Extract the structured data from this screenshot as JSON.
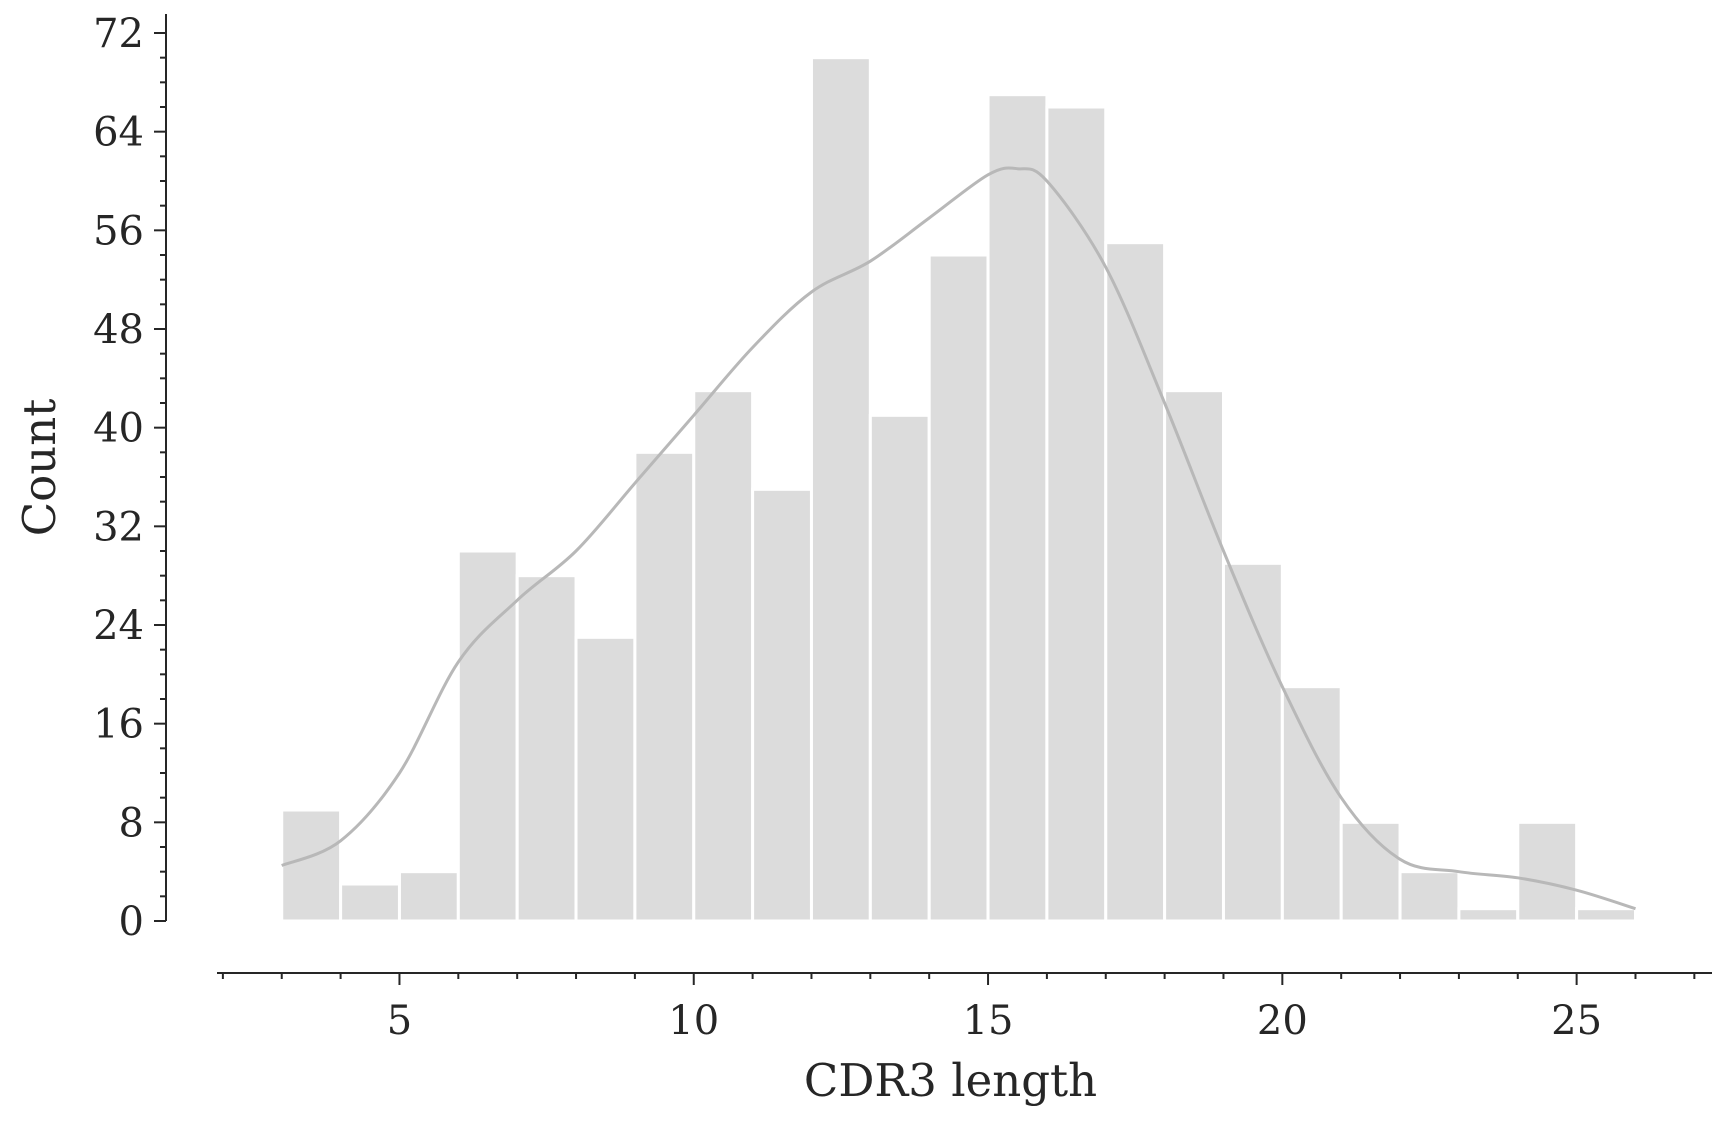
{
  "chart_data": {
    "type": "bar",
    "title": "",
    "xlabel": "CDR3 length",
    "ylabel": "Count",
    "xlim": [
      1.9,
      27.3
    ],
    "ylim": [
      0,
      72
    ],
    "x_ticks": [
      5,
      10,
      15,
      20,
      25
    ],
    "y_ticks": [
      0,
      8,
      16,
      24,
      32,
      40,
      48,
      56,
      64,
      72
    ],
    "grid": false,
    "bins": [
      {
        "start": 3,
        "end": 4,
        "count": 9
      },
      {
        "start": 4,
        "end": 5,
        "count": 3
      },
      {
        "start": 5,
        "end": 6,
        "count": 4
      },
      {
        "start": 6,
        "end": 7,
        "count": 30
      },
      {
        "start": 7,
        "end": 8,
        "count": 28
      },
      {
        "start": 8,
        "end": 9,
        "count": 23
      },
      {
        "start": 9,
        "end": 10,
        "count": 38
      },
      {
        "start": 10,
        "end": 11,
        "count": 43
      },
      {
        "start": 11,
        "end": 12,
        "count": 35
      },
      {
        "start": 12,
        "end": 13,
        "count": 70
      },
      {
        "start": 13,
        "end": 14,
        "count": 41
      },
      {
        "start": 14,
        "end": 15,
        "count": 54
      },
      {
        "start": 15,
        "end": 16,
        "count": 67
      },
      {
        "start": 16,
        "end": 17,
        "count": 66
      },
      {
        "start": 17,
        "end": 18,
        "count": 55
      },
      {
        "start": 18,
        "end": 19,
        "count": 43
      },
      {
        "start": 19,
        "end": 20,
        "count": 29
      },
      {
        "start": 20,
        "end": 21,
        "count": 19
      },
      {
        "start": 21,
        "end": 22,
        "count": 8
      },
      {
        "start": 22,
        "end": 23,
        "count": 4
      },
      {
        "start": 23,
        "end": 24,
        "count": 1
      },
      {
        "start": 24,
        "end": 25,
        "count": 8
      },
      {
        "start": 25,
        "end": 26,
        "count": 1
      }
    ],
    "kde_curve": {
      "x": [
        3,
        4,
        5,
        6,
        7,
        8,
        9,
        10,
        11,
        12,
        13,
        14,
        15,
        15.5,
        16,
        17,
        18,
        19,
        20,
        21,
        22,
        23,
        24,
        25,
        26
      ],
      "y": [
        4.5,
        6.5,
        12,
        21,
        26,
        30,
        35.5,
        41,
        46.5,
        51,
        53.5,
        57,
        60.5,
        61,
        60,
        53,
        42,
        30,
        19,
        10,
        5,
        4,
        3.5,
        2.5,
        1
      ]
    },
    "colors": {
      "bars": "#dcdcdc",
      "kde": "#b8b8b8",
      "axis": "#262626"
    }
  }
}
